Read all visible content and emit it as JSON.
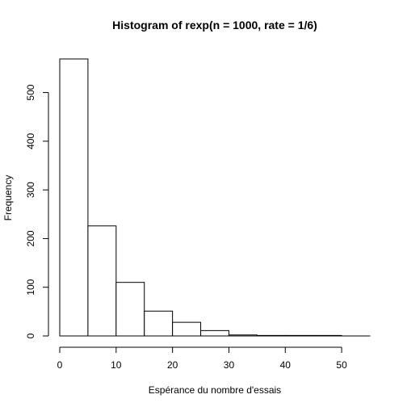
{
  "chart_data": {
    "type": "bar",
    "title": "Histogram of rexp(n = 1000, rate = 1/6)",
    "xlabel": "Espérance du nombre d'essais",
    "ylabel": "Frequency",
    "bins": [
      {
        "from": 0,
        "to": 5,
        "count": 569
      },
      {
        "from": 5,
        "to": 10,
        "count": 226
      },
      {
        "from": 10,
        "to": 15,
        "count": 110
      },
      {
        "from": 15,
        "to": 20,
        "count": 51
      },
      {
        "from": 20,
        "to": 25,
        "count": 28
      },
      {
        "from": 25,
        "to": 30,
        "count": 11
      },
      {
        "from": 30,
        "to": 35,
        "count": 2
      },
      {
        "from": 35,
        "to": 40,
        "count": 1
      },
      {
        "from": 40,
        "to": 45,
        "count": 1
      },
      {
        "from": 45,
        "to": 50,
        "count": 1
      },
      {
        "from": 50,
        "to": 55,
        "count": 0
      }
    ],
    "xlim": [
      0,
      55
    ],
    "ylim": [
      0,
      569
    ],
    "x_ticks": [
      0,
      10,
      20,
      30,
      40,
      50
    ],
    "y_ticks": [
      0,
      100,
      200,
      300,
      400,
      500
    ],
    "grid": false,
    "legend": "none"
  }
}
